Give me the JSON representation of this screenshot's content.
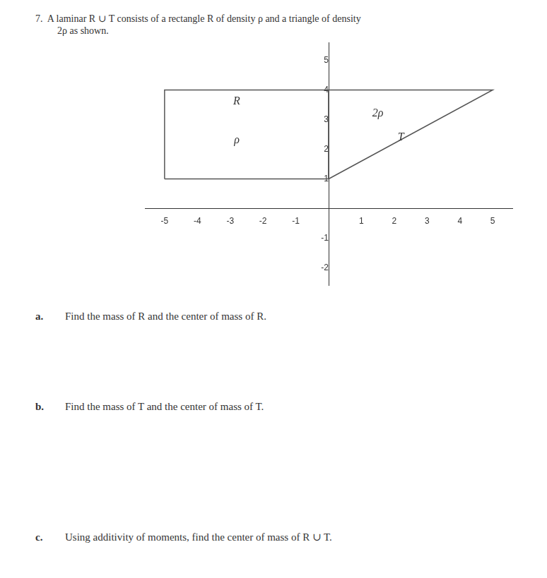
{
  "chart_data": {
    "type": "line",
    "title": [
      "7.  A laminar R ∪ T consists of a rectangle R of density ρ and a triangle of density",
      "2ρ as shown."
    ],
    "series": [
      {
        "color": "#555555",
        "x": [
          -5,
          0,
          0,
          -5,
          -5
        ],
        "values": [
          1,
          1,
          4,
          4,
          1
        ]
      },
      {
        "color": "#555555",
        "x": [
          0,
          0,
          5,
          0
        ],
        "values": [
          1,
          4,
          4,
          1
        ]
      }
    ],
    "xlim": [
      -5.6,
      5.6
    ],
    "ylim": [
      -2.6,
      5.6
    ],
    "xticks": [
      -5,
      -4,
      -3,
      -2,
      -1,
      1,
      2,
      3,
      4,
      5
    ],
    "yticks": [
      -2,
      -1,
      1,
      2,
      3,
      4,
      5
    ],
    "grid": false,
    "annotations": [
      {
        "text": "R",
        "x": -2.8,
        "y": 3.6
      },
      {
        "text": "ρ",
        "x": -2.8,
        "y": 2.3
      },
      {
        "text": "2ρ",
        "x": 1.5,
        "y": 3.2
      },
      {
        "text": "T",
        "x": 2.2,
        "y": 2.4
      },
      {
        "label": "a.",
        "text": "Find the mass of R and the center of mass of R."
      },
      {
        "label": "b.",
        "text": "Find the mass of T and the center of mass of T."
      },
      {
        "label": "c.",
        "text": "Using additivity of moments, find the center of mass of R ∪ T."
      }
    ]
  }
}
